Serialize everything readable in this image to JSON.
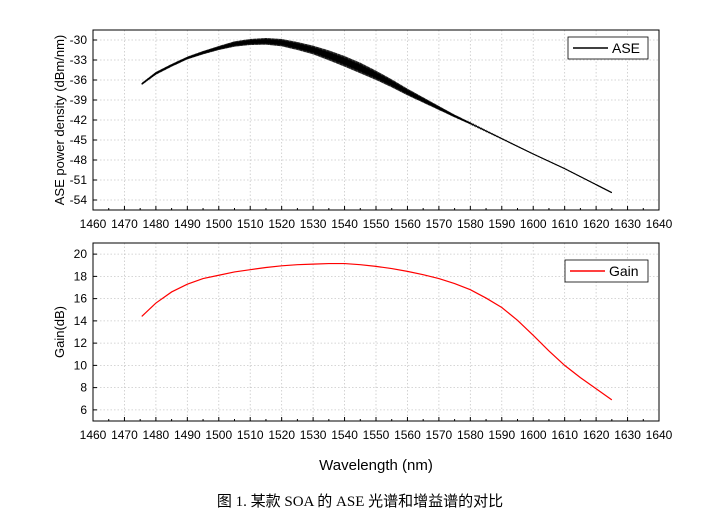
{
  "caption": "图 1. 某款 SOA 的 ASE 光谱和增益谱的对比",
  "chart_data": [
    {
      "type": "line",
      "title": "",
      "xlabel": "",
      "ylabel": "ASE power density (dBm/nm)",
      "xlim": [
        1460,
        1640
      ],
      "ylim": [
        -55.5,
        -28.5
      ],
      "xticks": [
        "1460",
        "1470",
        "1480",
        "1490",
        "1500",
        "1510",
        "1520",
        "1530",
        "1540",
        "1550",
        "1560",
        "1570",
        "1580",
        "1590",
        "1600",
        "1610",
        "1620",
        "1630",
        "1640"
      ],
      "yticks": [
        "-30",
        "-33",
        "-36",
        "-39",
        "-42",
        "-45",
        "-48",
        "-51",
        "-54"
      ],
      "ytick_values": [
        -30,
        -33,
        -36,
        -39,
        -42,
        -45,
        -48,
        -51,
        -54
      ],
      "legend_position": "top-right",
      "series": [
        {
          "name": "ASE",
          "color": "#000000",
          "x": [
            1475.5,
            1480,
            1485,
            1490,
            1495,
            1500,
            1505,
            1510,
            1515,
            1520,
            1525,
            1530,
            1535,
            1540,
            1545,
            1550,
            1555,
            1560,
            1565,
            1570,
            1575,
            1580,
            1590,
            1600,
            1610,
            1620,
            1625
          ],
          "y": [
            -36.6,
            -35.0,
            -33.8,
            -32.7,
            -31.9,
            -31.2,
            -30.6,
            -30.3,
            -30.2,
            -30.4,
            -30.9,
            -31.5,
            -32.3,
            -33.2,
            -34.2,
            -35.3,
            -36.5,
            -37.8,
            -39.0,
            -40.2,
            -41.4,
            -42.5,
            -44.8,
            -47.1,
            -49.3,
            -51.7,
            -52.9
          ],
          "ripple": [
            0.3,
            0.4,
            0.4,
            0.4,
            0.5,
            0.6,
            0.8,
            0.9,
            1.0,
            1.1,
            1.2,
            1.3,
            1.5,
            1.6,
            1.6,
            1.4,
            1.2,
            1.0,
            0.8,
            0.6,
            0.4,
            0.3,
            0.15,
            0.1,
            0.1,
            0.1,
            0.1
          ]
        }
      ]
    },
    {
      "type": "line",
      "title": "",
      "xlabel": "Wavelength (nm)",
      "ylabel": "Gain(dB)",
      "xlim": [
        1460,
        1640
      ],
      "ylim": [
        5,
        21
      ],
      "xticks": [
        "1460",
        "1470",
        "1480",
        "1490",
        "1500",
        "1510",
        "1520",
        "1530",
        "1540",
        "1550",
        "1560",
        "1570",
        "1580",
        "1590",
        "1600",
        "1610",
        "1620",
        "1630",
        "1640"
      ],
      "yticks": [
        "6",
        "8",
        "10",
        "12",
        "14",
        "16",
        "18",
        "20"
      ],
      "ytick_values": [
        6,
        8,
        10,
        12,
        14,
        16,
        18,
        20
      ],
      "legend_position": "top-right",
      "series": [
        {
          "name": "Gain",
          "color": "#ff0000",
          "x": [
            1475.5,
            1480,
            1485,
            1490,
            1495,
            1500,
            1505,
            1510,
            1515,
            1520,
            1525,
            1530,
            1535,
            1540,
            1545,
            1550,
            1555,
            1560,
            1565,
            1570,
            1575,
            1580,
            1585,
            1590,
            1595,
            1600,
            1605,
            1610,
            1615,
            1620,
            1625
          ],
          "y": [
            14.4,
            15.6,
            16.6,
            17.3,
            17.8,
            18.1,
            18.4,
            18.6,
            18.8,
            18.95,
            19.05,
            19.1,
            19.15,
            19.15,
            19.05,
            18.9,
            18.7,
            18.45,
            18.15,
            17.8,
            17.35,
            16.8,
            16.05,
            15.2,
            14.05,
            12.7,
            11.3,
            10.0,
            8.9,
            7.9,
            6.9
          ]
        }
      ]
    }
  ]
}
